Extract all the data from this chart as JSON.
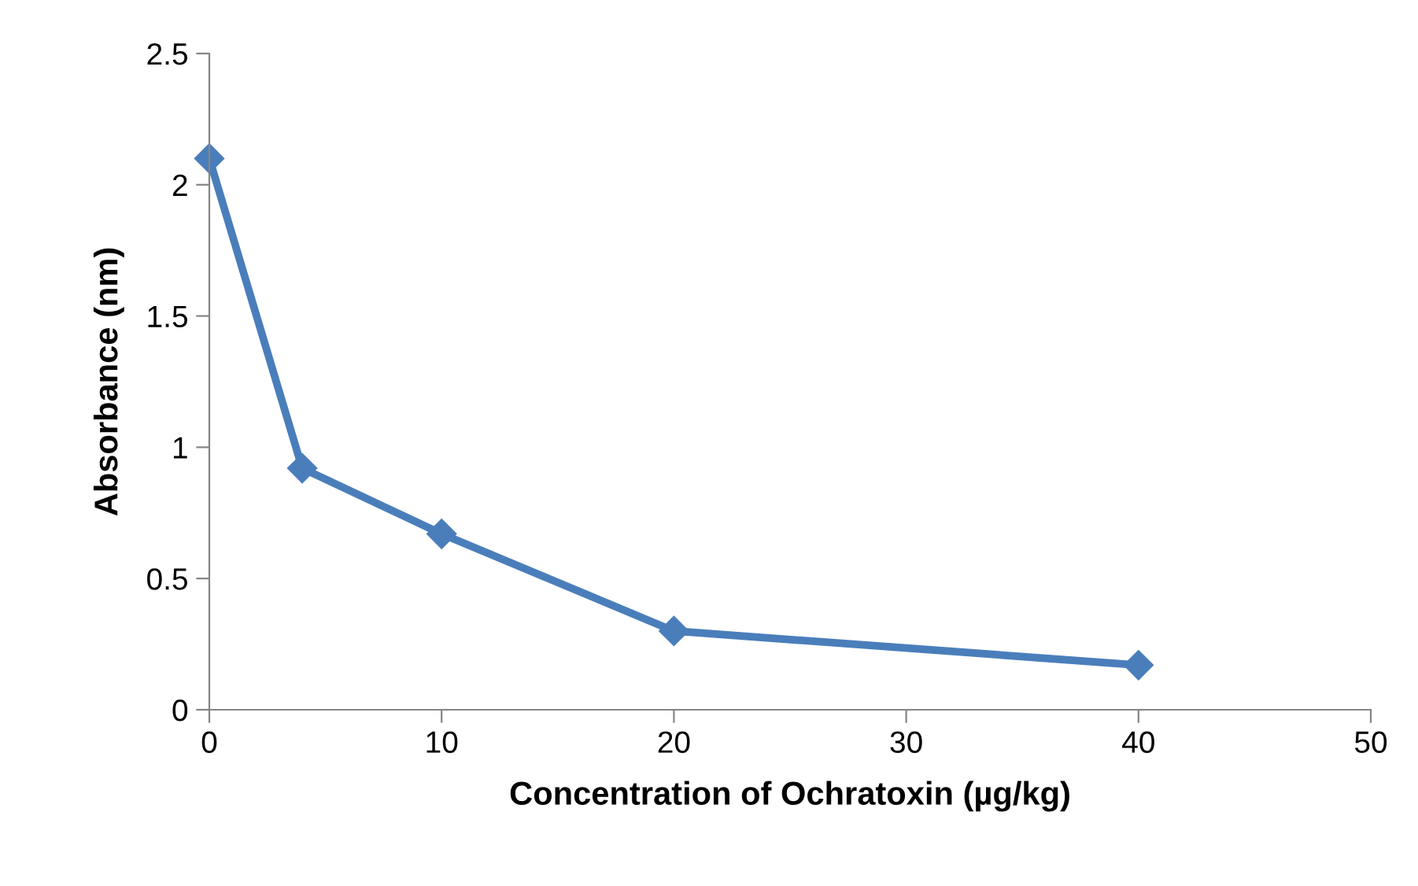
{
  "chart_data": {
    "type": "line",
    "xlabel": "Concentration of Ochratoxin (µg/kg)",
    "ylabel": "Absorbance (nm)",
    "x": [
      0,
      4,
      10,
      20,
      40
    ],
    "series": [
      {
        "color": "#4a7ebb",
        "values": [
          2.1,
          0.92,
          0.67,
          0.3,
          0.17
        ]
      }
    ],
    "xlim": [
      0,
      50
    ],
    "xticks": [
      0,
      10,
      20,
      30,
      40,
      50
    ],
    "ylim": [
      0,
      2.5
    ],
    "yticks": [
      0,
      0.5,
      1,
      1.5,
      2,
      2.5
    ],
    "grid": false,
    "legend": false,
    "marker": "diamond",
    "line_style": "solid"
  }
}
